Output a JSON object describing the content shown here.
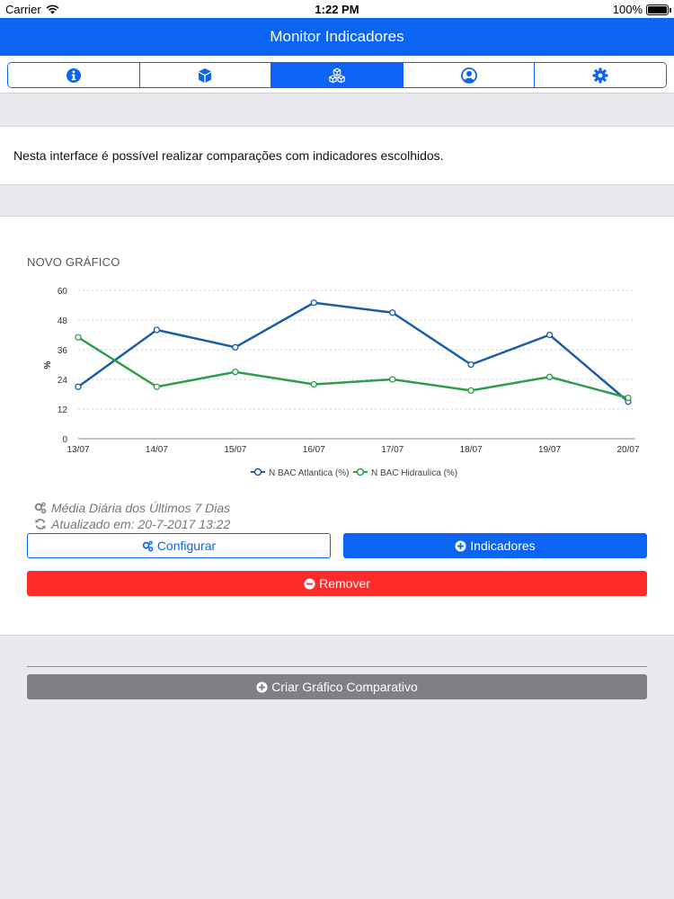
{
  "status_bar": {
    "carrier": "Carrier",
    "time": "1:22 PM",
    "battery": "100%"
  },
  "nav": {
    "title": "Monitor Indicadores"
  },
  "tabs": [
    {
      "icon": "info-icon",
      "active": false
    },
    {
      "icon": "cube-icon",
      "active": false
    },
    {
      "icon": "cubes-icon",
      "active": true
    },
    {
      "icon": "user-icon",
      "active": false
    },
    {
      "icon": "gear-icon",
      "active": false
    }
  ],
  "info": {
    "text": "Nesta interface é possível realizar comparações com indicadores escolhidos."
  },
  "chart_section": {
    "title": "NOVO GRÁFICO",
    "meta_period": "Média Diária dos Últimos 7 Dias",
    "meta_updated": "Atualizado em: 20-7-2017 13:22",
    "configure_label": "Configurar",
    "indicators_label": "Indicadores",
    "remove_label": "Remover"
  },
  "chart_data": {
    "type": "line",
    "title": "NOVO GRÁFICO",
    "xlabel": "",
    "ylabel": "%",
    "ylim": [
      0,
      60
    ],
    "yticks": [
      "0",
      "12",
      "24",
      "36",
      "48",
      "60"
    ],
    "categories": [
      "13/07",
      "14/07",
      "15/07",
      "16/07",
      "17/07",
      "18/07",
      "19/07",
      "20/07"
    ],
    "grid": true,
    "legend_position": "bottom",
    "series": [
      {
        "name": "N BAC Atlantica (%)",
        "color": "#1a5ea8",
        "values": [
          21,
          44,
          37,
          55,
          51,
          30,
          42,
          15
        ]
      },
      {
        "name": "N BAC Hidraulica (%)",
        "color": "#2e9e4a",
        "values": [
          41,
          21,
          27,
          22,
          24,
          19.5,
          25,
          16.5
        ]
      }
    ]
  },
  "footer": {
    "create_label": "Criar Gráfico Comparativo"
  },
  "colors": {
    "accent": "#0c64f5",
    "danger": "#ff2a2a",
    "gray_button": "#807f86"
  }
}
